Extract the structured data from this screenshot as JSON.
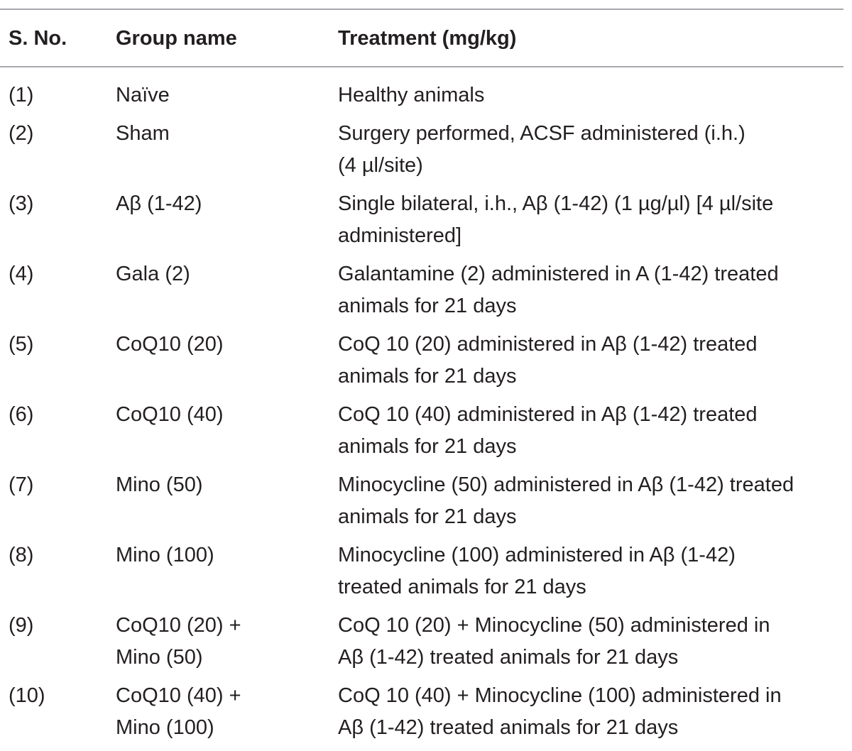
{
  "table": {
    "headers": {
      "sno": "S. No.",
      "group": "Group name",
      "treatment": "Treatment (mg/kg)"
    },
    "rows": [
      {
        "sno": "(1)",
        "group": "Naïve",
        "treatment": "Healthy animals"
      },
      {
        "sno": "(2)",
        "group": "Sham",
        "treatment": "Surgery performed, ACSF administered (i.h.)\n(4 µl/site)"
      },
      {
        "sno": "(3)",
        "group": "Aβ (1-42)",
        "treatment": "Single bilateral, i.h., Aβ (1-42) (1 µg/µl) [4 µl/site\nadministered]"
      },
      {
        "sno": "(4)",
        "group": "Gala (2)",
        "treatment": "Galantamine (2) administered in A (1-42) treated\nanimals for 21 days"
      },
      {
        "sno": "(5)",
        "group": "CoQ10 (20)",
        "treatment": "CoQ 10 (20) administered in Aβ (1-42) treated\nanimals for 21 days"
      },
      {
        "sno": "(6)",
        "group": "CoQ10 (40)",
        "treatment": "CoQ 10 (40) administered in Aβ (1-42) treated\nanimals for 21 days"
      },
      {
        "sno": "(7)",
        "group": "Mino (50)",
        "treatment": "Minocycline (50) administered in Aβ (1-42) treated\nanimals for 21 days"
      },
      {
        "sno": "(8)",
        "group": "Mino (100)",
        "treatment": "Minocycline (100) administered in Aβ (1-42)\ntreated animals for 21 days"
      },
      {
        "sno": "(9)",
        "group": "CoQ10 (20) +\nMino (50)",
        "treatment": "CoQ 10 (20) + Minocycline (50) administered in\nAβ (1-42) treated animals for 21 days"
      },
      {
        "sno": "(10)",
        "group": "CoQ10 (40) +\nMino (100)",
        "treatment": "CoQ 10 (40) + Minocycline (100) administered in\nAβ (1-42) treated animals for 21 days"
      }
    ]
  }
}
